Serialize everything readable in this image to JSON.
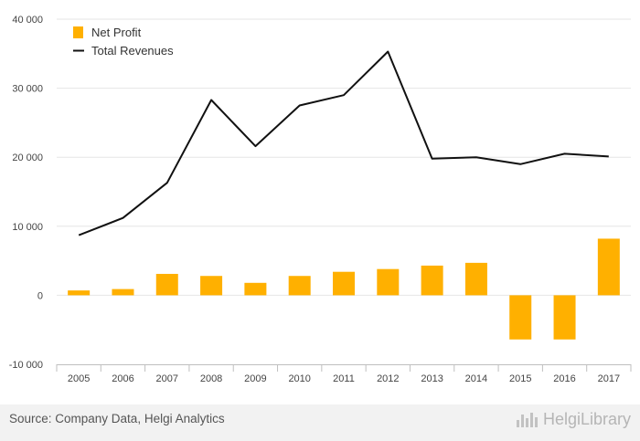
{
  "chart_data": {
    "type": "bar",
    "categories": [
      "2005",
      "2006",
      "2007",
      "2008",
      "2009",
      "2010",
      "2011",
      "2012",
      "2013",
      "2014",
      "2015",
      "2016",
      "2017"
    ],
    "series": [
      {
        "name": "Net Profit",
        "type": "bar",
        "color": "#ffb000",
        "values": [
          700,
          900,
          3100,
          2800,
          1800,
          2800,
          3400,
          3800,
          4300,
          4700,
          -6400,
          -6400,
          8200
        ]
      },
      {
        "name": "Total Revenues",
        "type": "line",
        "color": "#111111",
        "values": [
          8700,
          11200,
          16300,
          28300,
          21600,
          27500,
          29000,
          35300,
          19800,
          20000,
          19000,
          20500,
          20100
        ]
      }
    ],
    "ylim": [
      -10000,
      40000
    ],
    "yticks": [
      -10000,
      0,
      10000,
      20000,
      30000,
      40000
    ],
    "ytick_labels": [
      "-10 000",
      "0",
      "10 000",
      "20 000",
      "30 000",
      "40 000"
    ],
    "grid": true,
    "legend_position": "top-left"
  },
  "footer": {
    "source": "Source: Company Data, Helgi Analytics",
    "logo_text": "HelgiLibrary"
  }
}
